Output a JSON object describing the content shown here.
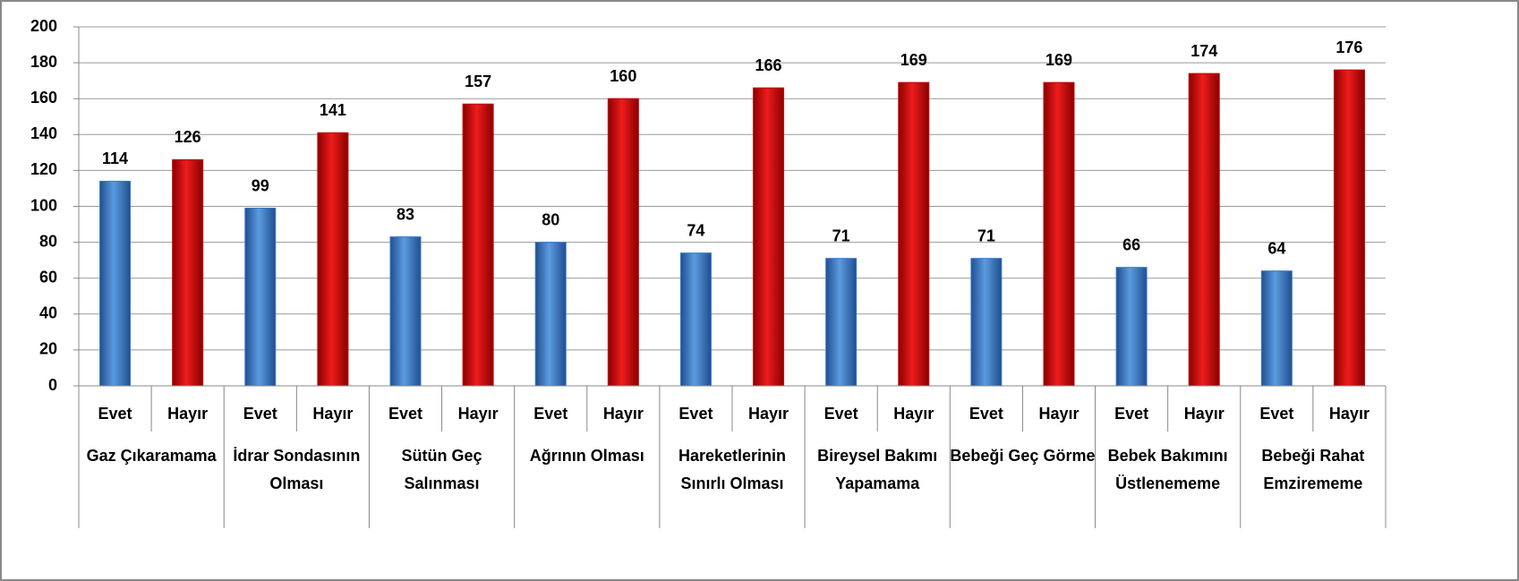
{
  "chart_data": {
    "type": "bar",
    "categories": [
      "Gaz Çıkaramama",
      "İdrar Sondasının Olması",
      "Sütün Geç Salınması",
      "Ağrının Olması",
      "Hareketlerinin Sınırlı Olması",
      "Bireysel Bakımı Yapamama",
      "Bebeği Geç Görme",
      "Bebek Bakımını Üstlenememe",
      "Bebeği Rahat Emzirememe"
    ],
    "series": [
      {
        "name": "Evet",
        "color": "#3a78c8",
        "values": [
          114,
          99,
          83,
          80,
          74,
          71,
          71,
          66,
          64
        ]
      },
      {
        "name": "Hayır",
        "color": "#cc0000",
        "values": [
          126,
          141,
          157,
          160,
          166,
          169,
          169,
          174,
          176
        ]
      }
    ],
    "ylim": [
      0,
      200
    ],
    "yticks": [
      0,
      20,
      40,
      60,
      80,
      100,
      120,
      140,
      160,
      180,
      200
    ],
    "grid": true
  }
}
